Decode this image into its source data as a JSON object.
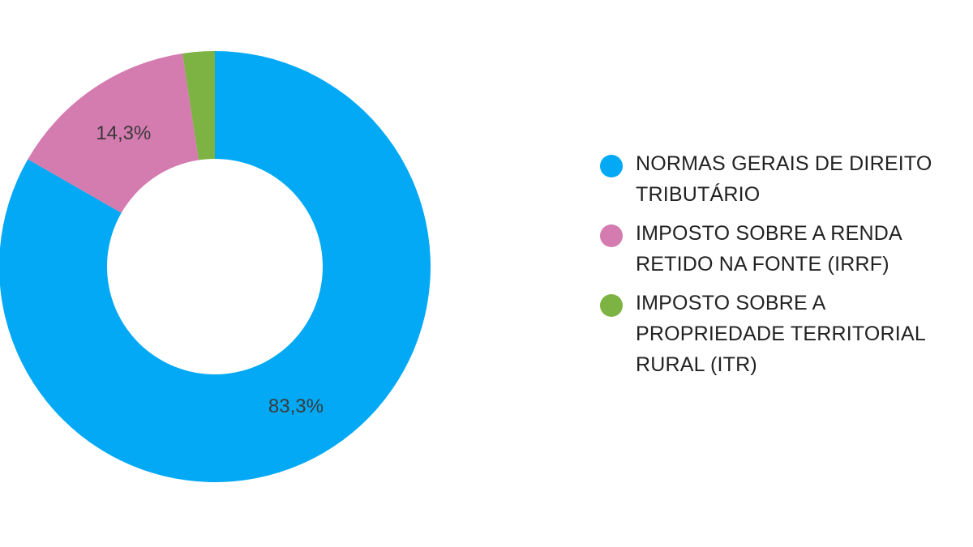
{
  "chart_data": {
    "type": "pie",
    "donut": true,
    "legend_position": "right",
    "slices": [
      {
        "name": "NORMAS GERAIS DE DIREITO TRIBUTÁRIO",
        "value": 83.3,
        "label": "83,3%",
        "color": "#03A9F4"
      },
      {
        "name": "IMPOSTO SOBRE A RENDA RETIDO NA FONTE (IRRF)",
        "value": 14.3,
        "label": "14,3%",
        "color": "#D47BB0"
      },
      {
        "name": "IMPOSTO SOBRE A PROPRIEDADE TERRITORIAL RURAL (ITR)",
        "value": 2.4,
        "label": "",
        "color": "#7CB342"
      }
    ]
  }
}
